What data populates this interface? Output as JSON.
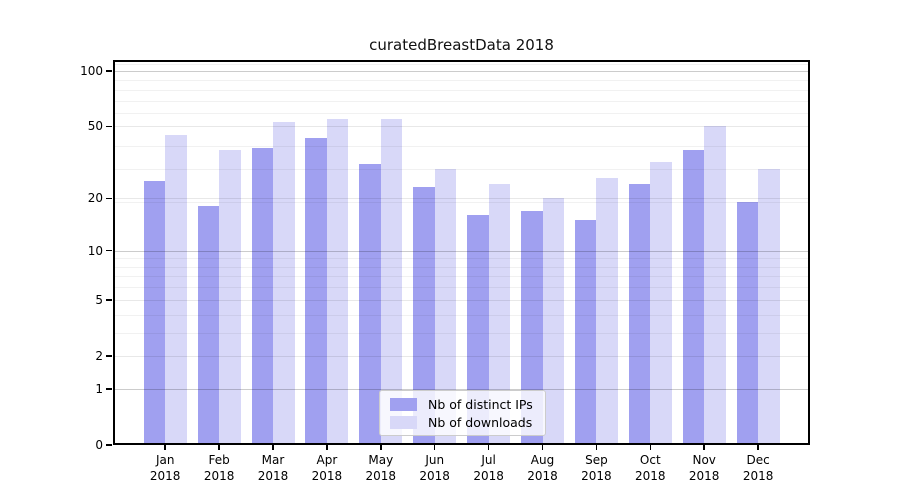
{
  "title": "curatedBreastData 2018",
  "chart_data": {
    "type": "bar",
    "title": "curatedBreastData 2018",
    "categories": [
      "Jan 2018",
      "Feb 2018",
      "Mar 2018",
      "Apr 2018",
      "May 2018",
      "Jun 2018",
      "Jul 2018",
      "Aug 2018",
      "Sep 2018",
      "Oct 2018",
      "Nov 2018",
      "Dec 2018"
    ],
    "x_months": [
      "Jan",
      "Feb",
      "Mar",
      "Apr",
      "May",
      "Jun",
      "Jul",
      "Aug",
      "Sep",
      "Oct",
      "Nov",
      "Dec"
    ],
    "x_year": "2018",
    "series": [
      {
        "name": "Nb of distinct IPs",
        "color": "#a0a0f0",
        "values": [
          25,
          18,
          38,
          43,
          31,
          23,
          16,
          17,
          15,
          24,
          37,
          19
        ]
      },
      {
        "name": "Nb of downloads",
        "color": "#d8d8f8",
        "values": [
          45,
          37,
          53,
          55,
          55,
          29,
          24,
          20,
          26,
          32,
          50,
          29
        ]
      }
    ],
    "y_ticks": [
      100,
      50,
      20,
      10,
      5,
      2,
      1,
      0
    ],
    "y_major_grid_values": [
      100,
      10,
      1
    ],
    "y_mid_grid_values": [
      50,
      20,
      5,
      2
    ],
    "y_minor_grid_values": [
      109,
      89,
      79,
      69,
      59,
      39,
      29,
      19,
      9,
      8,
      7,
      6,
      4,
      3
    ],
    "y_scale": "log10(1+v)",
    "ylim": [
      0,
      114
    ],
    "xlabel": "",
    "ylabel": "",
    "grid": true,
    "legend_position": "lower center",
    "legend_entries": [
      "Nb of distinct IPs",
      "Nb of downloads"
    ]
  },
  "colors": {
    "bar_dark": "#a0a0f0",
    "bar_light": "#d8d8f8",
    "spine": "#000000",
    "background": "#ffffff"
  }
}
